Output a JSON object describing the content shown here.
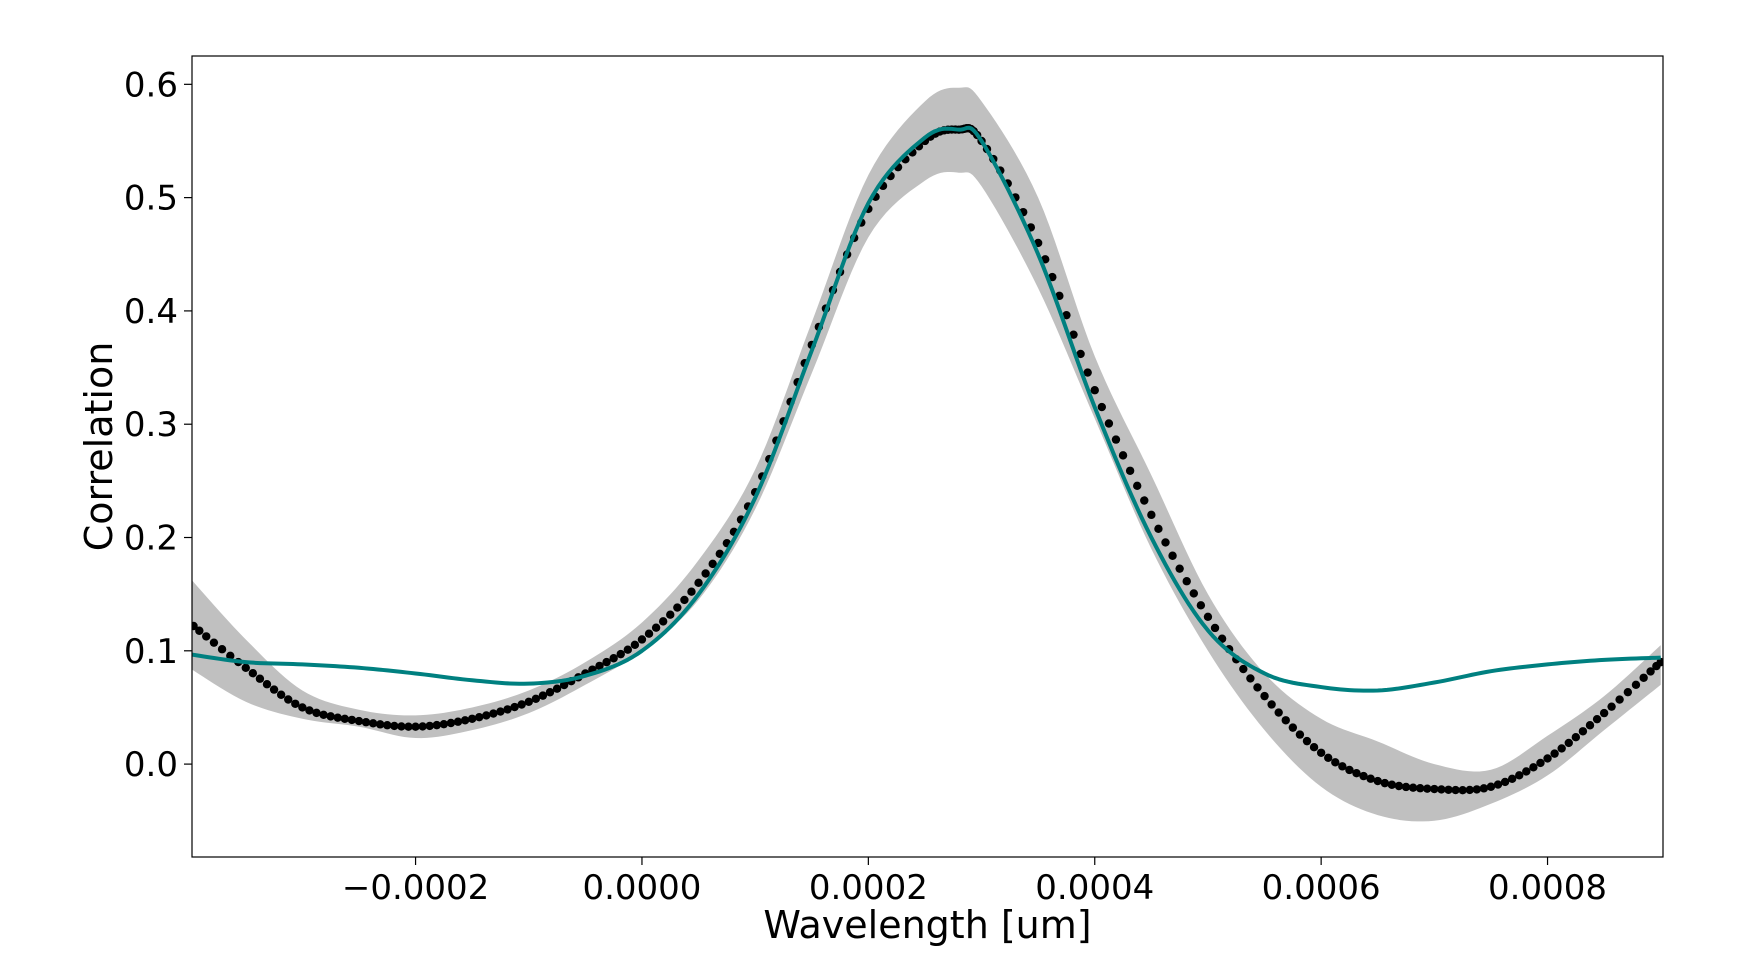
{
  "chart_data": {
    "type": "line",
    "title": "",
    "xlabel": "Wavelength [um]",
    "ylabel": "Correlation",
    "xlim": [
      -0.0003975,
      0.000902
    ],
    "ylim": [
      -0.082,
      0.625
    ],
    "grid": false,
    "legend": "none",
    "x_ticks": [
      {
        "value": -0.0002,
        "label": "−0.0002"
      },
      {
        "value": 0.0,
        "label": "0.0000"
      },
      {
        "value": 0.0002,
        "label": "0.0002"
      },
      {
        "value": 0.0004,
        "label": "0.0004"
      },
      {
        "value": 0.0006,
        "label": "0.0006"
      },
      {
        "value": 0.0008,
        "label": "0.0008"
      }
    ],
    "y_ticks": [
      {
        "value": 0.0,
        "label": "0.0"
      },
      {
        "value": 0.1,
        "label": "0.1"
      },
      {
        "value": 0.2,
        "label": "0.2"
      },
      {
        "value": 0.3,
        "label": "0.3"
      },
      {
        "value": 0.4,
        "label": "0.4"
      },
      {
        "value": 0.5,
        "label": "0.5"
      },
      {
        "value": 0.6,
        "label": "0.6"
      }
    ],
    "colors": {
      "data": "#000000",
      "fit": "#008080",
      "band": "#c0c0c0"
    },
    "series": [
      {
        "role": "data-points",
        "style": "dots",
        "x": [
          -0.0004,
          -0.00035,
          -0.0003,
          -0.00025,
          -0.0002,
          -0.00015,
          -0.0001,
          -5e-05,
          0.0,
          5e-05,
          0.0001,
          0.00015,
          0.0002,
          0.00025,
          0.00028,
          0.0003,
          0.00035,
          0.0004,
          0.00045,
          0.0005,
          0.00055,
          0.0006,
          0.00065,
          0.0007,
          0.00075,
          0.0008,
          0.00085,
          0.0009
        ],
        "y": [
          0.125,
          0.085,
          0.05,
          0.038,
          0.033,
          0.04,
          0.055,
          0.08,
          0.11,
          0.16,
          0.24,
          0.37,
          0.49,
          0.55,
          0.56,
          0.55,
          0.46,
          0.33,
          0.22,
          0.13,
          0.06,
          0.01,
          -0.015,
          -0.022,
          -0.02,
          0.005,
          0.045,
          0.09
        ]
      },
      {
        "role": "uncertainty-band",
        "style": "band",
        "x": [
          -0.0004,
          -0.00035,
          -0.0003,
          -0.00025,
          -0.0002,
          -0.00015,
          -0.0001,
          -5e-05,
          0.0,
          5e-05,
          0.0001,
          0.00015,
          0.0002,
          0.00025,
          0.00028,
          0.0003,
          0.00035,
          0.0004,
          0.00045,
          0.0005,
          0.00055,
          0.0006,
          0.00065,
          0.0007,
          0.00075,
          0.0008,
          0.00085,
          0.0009
        ],
        "lower": [
          0.085,
          0.055,
          0.04,
          0.033,
          0.023,
          0.03,
          0.045,
          0.07,
          0.1,
          0.145,
          0.225,
          0.345,
          0.465,
          0.515,
          0.522,
          0.51,
          0.42,
          0.305,
          0.19,
          0.1,
          0.03,
          -0.02,
          -0.045,
          -0.05,
          -0.035,
          -0.01,
          0.03,
          0.07
        ],
        "upper": [
          0.165,
          0.11,
          0.065,
          0.048,
          0.043,
          0.05,
          0.065,
          0.09,
          0.125,
          0.18,
          0.26,
          0.39,
          0.52,
          0.585,
          0.597,
          0.585,
          0.5,
          0.36,
          0.255,
          0.15,
          0.08,
          0.04,
          0.02,
          0.0,
          -0.005,
          0.025,
          0.06,
          0.105
        ]
      },
      {
        "role": "model-fit",
        "style": "line",
        "x": [
          -0.0004,
          -0.00035,
          -0.0003,
          -0.00025,
          -0.0002,
          -0.00015,
          -0.0001,
          -5e-05,
          0.0,
          5e-05,
          0.0001,
          0.00015,
          0.0002,
          0.00025,
          0.00028,
          0.0003,
          0.00035,
          0.0004,
          0.00045,
          0.0005,
          0.00055,
          0.0006,
          0.00065,
          0.0007,
          0.00075,
          0.0008,
          0.00085,
          0.0009
        ],
        "y": [
          0.097,
          0.09,
          0.088,
          0.085,
          0.08,
          0.074,
          0.071,
          0.078,
          0.1,
          0.15,
          0.235,
          0.365,
          0.495,
          0.553,
          0.56,
          0.55,
          0.45,
          0.315,
          0.2,
          0.118,
          0.08,
          0.068,
          0.065,
          0.072,
          0.082,
          0.088,
          0.092,
          0.094
        ]
      }
    ]
  }
}
